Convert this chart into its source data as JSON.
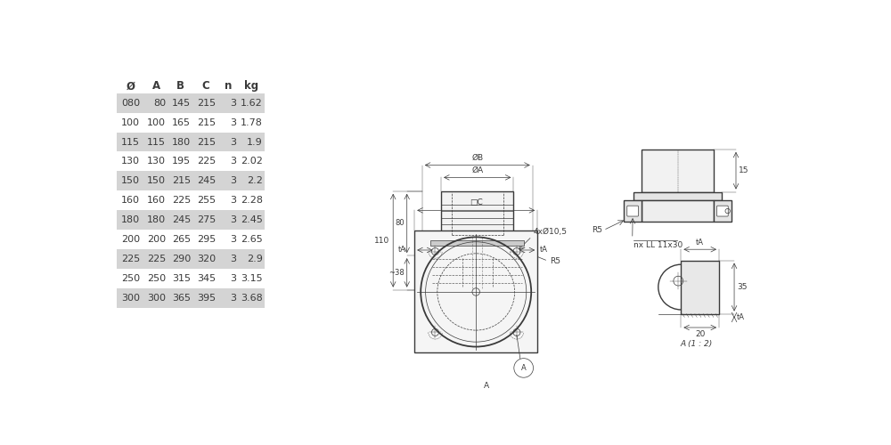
{
  "table_headers": [
    "Ø",
    "A",
    "B",
    "C",
    "n",
    "kg"
  ],
  "table_data": [
    [
      "080",
      "80",
      "145",
      "215",
      "3",
      "1.62"
    ],
    [
      "100",
      "100",
      "165",
      "215",
      "3",
      "1.78"
    ],
    [
      "115",
      "115",
      "180",
      "215",
      "3",
      "1.9"
    ],
    [
      "130",
      "130",
      "195",
      "225",
      "3",
      "2.02"
    ],
    [
      "150",
      "150",
      "215",
      "245",
      "3",
      "2.2"
    ],
    [
      "160",
      "160",
      "225",
      "255",
      "3",
      "2.28"
    ],
    [
      "180",
      "180",
      "245",
      "275",
      "3",
      "2.45"
    ],
    [
      "200",
      "200",
      "265",
      "295",
      "3",
      "2.65"
    ],
    [
      "225",
      "225",
      "290",
      "320",
      "3",
      "2.9"
    ],
    [
      "250",
      "250",
      "315",
      "345",
      "3",
      "3.15"
    ],
    [
      "300",
      "300",
      "365",
      "395",
      "3",
      "3.68"
    ]
  ],
  "shaded_rows": [
    0,
    2,
    4,
    6,
    8,
    10
  ],
  "row_bg_shaded": "#d4d4d4",
  "row_bg_normal": "#ffffff",
  "text_color": "#3a3a3a",
  "line_color": "#3a3a3a",
  "bg_color": "#ffffff",
  "font_size_table": 8.0,
  "font_size_dim": 6.5,
  "font_size_label": 7.0
}
